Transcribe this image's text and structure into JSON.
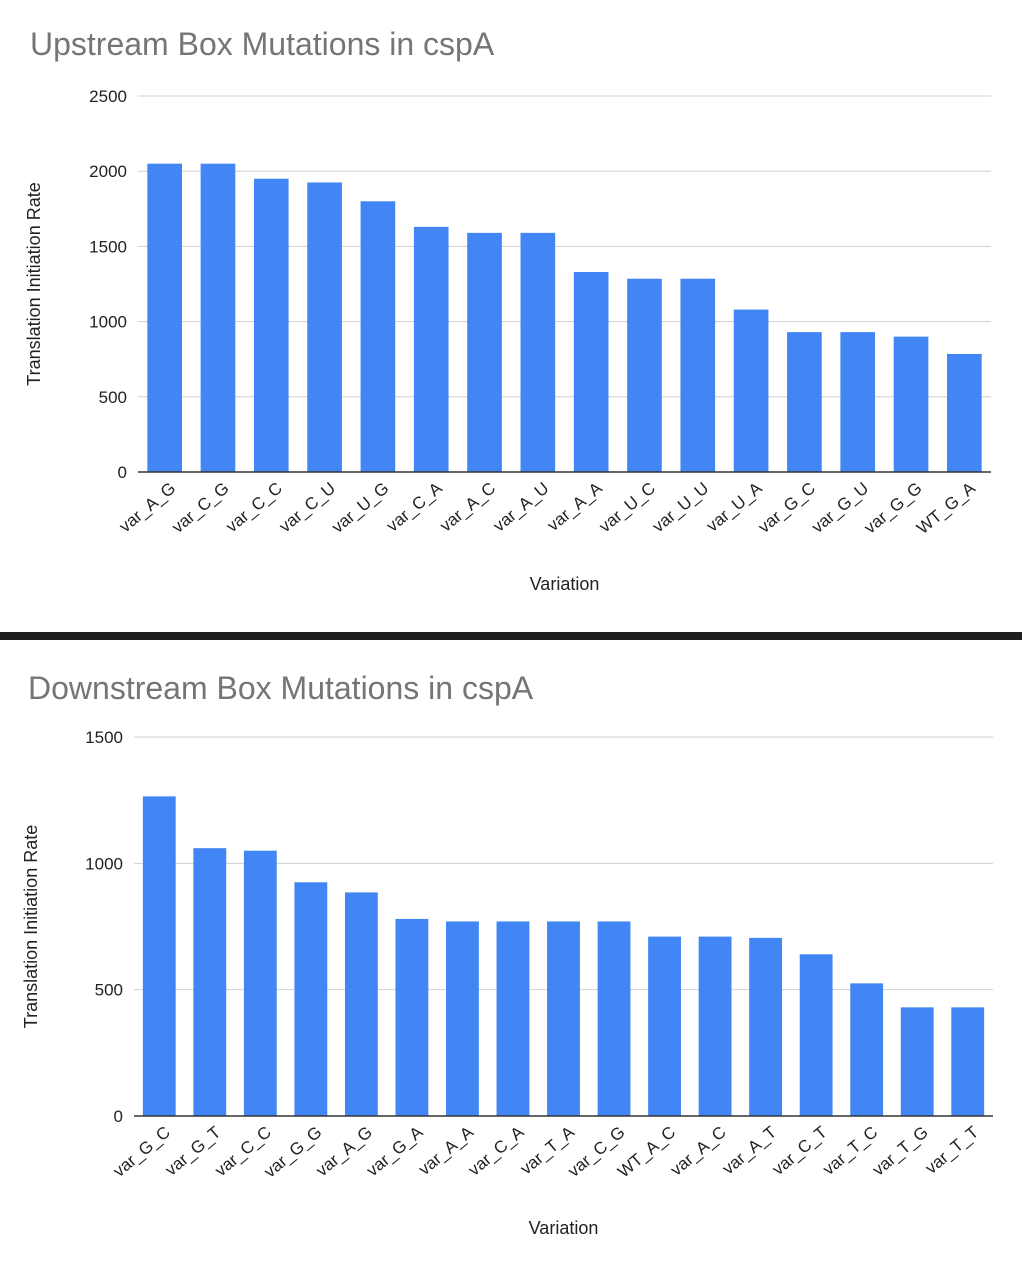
{
  "chart_data": [
    {
      "type": "bar",
      "title": "Upstream Box Mutations in cspA",
      "xlabel": "Variation",
      "ylabel": "Translation Initiation Rate",
      "ylim": [
        0,
        2500
      ],
      "yticks": [
        0,
        500,
        1000,
        1500,
        2000,
        2500
      ],
      "grid": true,
      "legend": "none",
      "color": "#4285f4",
      "categories": [
        "var_A_G",
        "var_C_G",
        "var_C_C",
        "var_C_U",
        "var_U_G",
        "var_C_A",
        "var_A_C",
        "var_A_U",
        "var_A_A",
        "var_U_C",
        "var_U_U",
        "var_U_A",
        "var_G_C",
        "var_G_U",
        "var_G_G",
        "WT_G_A"
      ],
      "values": [
        2050,
        2050,
        1950,
        1925,
        1800,
        1630,
        1590,
        1590,
        1330,
        1285,
        1285,
        1080,
        930,
        930,
        900,
        785
      ]
    },
    {
      "type": "bar",
      "title": "Downstream Box Mutations in cspA",
      "xlabel": "Variation",
      "ylabel": "Translation Initiation Rate",
      "ylim": [
        0,
        1500
      ],
      "yticks": [
        0,
        500,
        1000,
        1500
      ],
      "grid": true,
      "legend": "none",
      "color": "#4285f4",
      "categories": [
        "var_G_C",
        "var_G_T",
        "var_C_C",
        "var_G_G",
        "var_A_G",
        "var_G_A",
        "var_A_A",
        "var_C_A",
        "var_T_A",
        "var_C_G",
        "WT_A_C",
        "var_A_C",
        "var_A_T",
        "var_C_T",
        "var_T_C",
        "var_T_G",
        "var_T_T"
      ],
      "values": [
        1265,
        1060,
        1050,
        925,
        885,
        780,
        770,
        770,
        770,
        770,
        710,
        710,
        705,
        640,
        525,
        430,
        430
      ]
    }
  ]
}
